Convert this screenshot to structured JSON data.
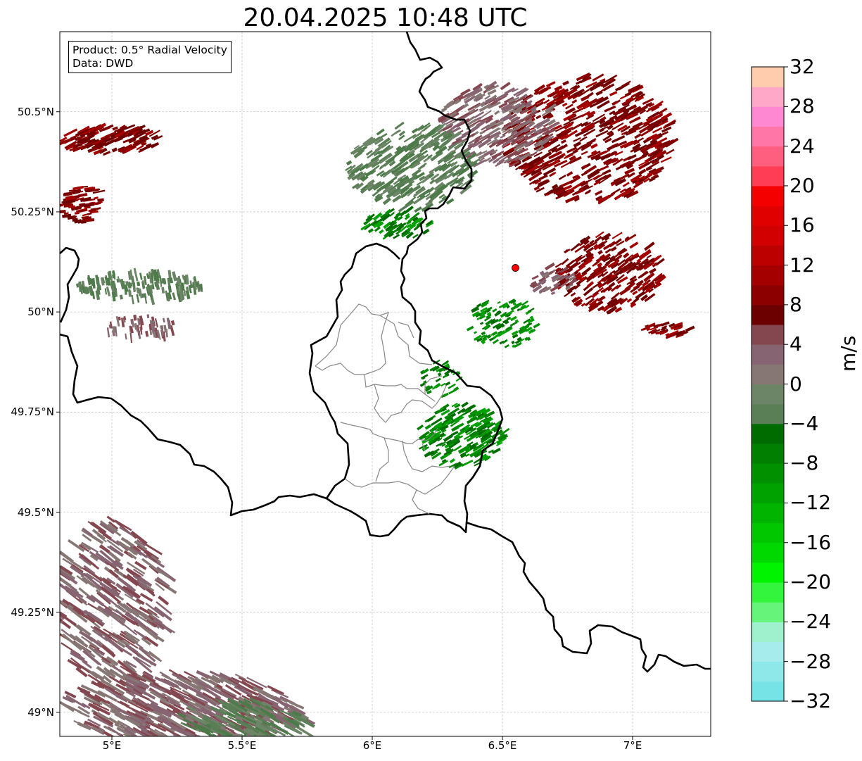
{
  "title": "20.04.2025 10:48 UTC",
  "info": {
    "product": "Product: 0.5° Radial Velocity",
    "data": "Data: DWD"
  },
  "map": {
    "lat_range": [
      48.94,
      50.7
    ],
    "lon_range": [
      4.8,
      7.3
    ],
    "lat_ticks": [
      {
        "value": 50.5,
        "label": "50.5°N"
      },
      {
        "value": 50.25,
        "label": "50.25°N"
      },
      {
        "value": 50.0,
        "label": "50°N"
      },
      {
        "value": 49.75,
        "label": "49.75°N"
      },
      {
        "value": 49.5,
        "label": "49.5°N"
      },
      {
        "value": 49.25,
        "label": "49.25°N"
      },
      {
        "value": 49.0,
        "label": "49°N"
      }
    ],
    "lon_ticks": [
      {
        "value": 5.0,
        "label": "5°E"
      },
      {
        "value": 5.5,
        "label": "5.5°E"
      },
      {
        "value": 6.0,
        "label": "6°E"
      },
      {
        "value": 6.5,
        "label": "6.5°E"
      },
      {
        "value": 7.0,
        "label": "7°E"
      }
    ],
    "grid": true,
    "radar_site": {
      "lon": 6.55,
      "lat": 50.11,
      "color": "#ff0000"
    }
  },
  "colorbar": {
    "label": "m/s",
    "min": -32,
    "max": 32,
    "step": 2,
    "ticks": [
      {
        "value": 32,
        "label": "32"
      },
      {
        "value": 28,
        "label": "28"
      },
      {
        "value": 24,
        "label": "24"
      },
      {
        "value": 20,
        "label": "20"
      },
      {
        "value": 16,
        "label": "16"
      },
      {
        "value": 12,
        "label": "12"
      },
      {
        "value": 8,
        "label": "8"
      },
      {
        "value": 4,
        "label": "4"
      },
      {
        "value": 0,
        "label": "0"
      },
      {
        "value": -4,
        "label": "−4"
      },
      {
        "value": -8,
        "label": "−8"
      },
      {
        "value": -12,
        "label": "−12"
      },
      {
        "value": -16,
        "label": "−16"
      },
      {
        "value": -20,
        "label": "−20"
      },
      {
        "value": -24,
        "label": "−24"
      },
      {
        "value": -28,
        "label": "−28"
      },
      {
        "value": -32,
        "label": "−32"
      }
    ],
    "colors_bottom_to_top": [
      "#76e3e6",
      "#8ee8ea",
      "#a7ecec",
      "#9ff0cc",
      "#66f57a",
      "#34f53e",
      "#00f400",
      "#00d900",
      "#00c700",
      "#00b400",
      "#00a200",
      "#009000",
      "#007f00",
      "#006c00",
      "#5a7e56",
      "#6c8566",
      "#877774",
      "#866471",
      "#84474f",
      "#6c0000",
      "#8d0000",
      "#a50000",
      "#bc0000",
      "#d20000",
      "#e10000",
      "#f40000",
      "#ff3d55",
      "#ff5f7e",
      "#ff76a7",
      "#ff88d2",
      "#ffa8c8",
      "#ffccad"
    ]
  }
}
